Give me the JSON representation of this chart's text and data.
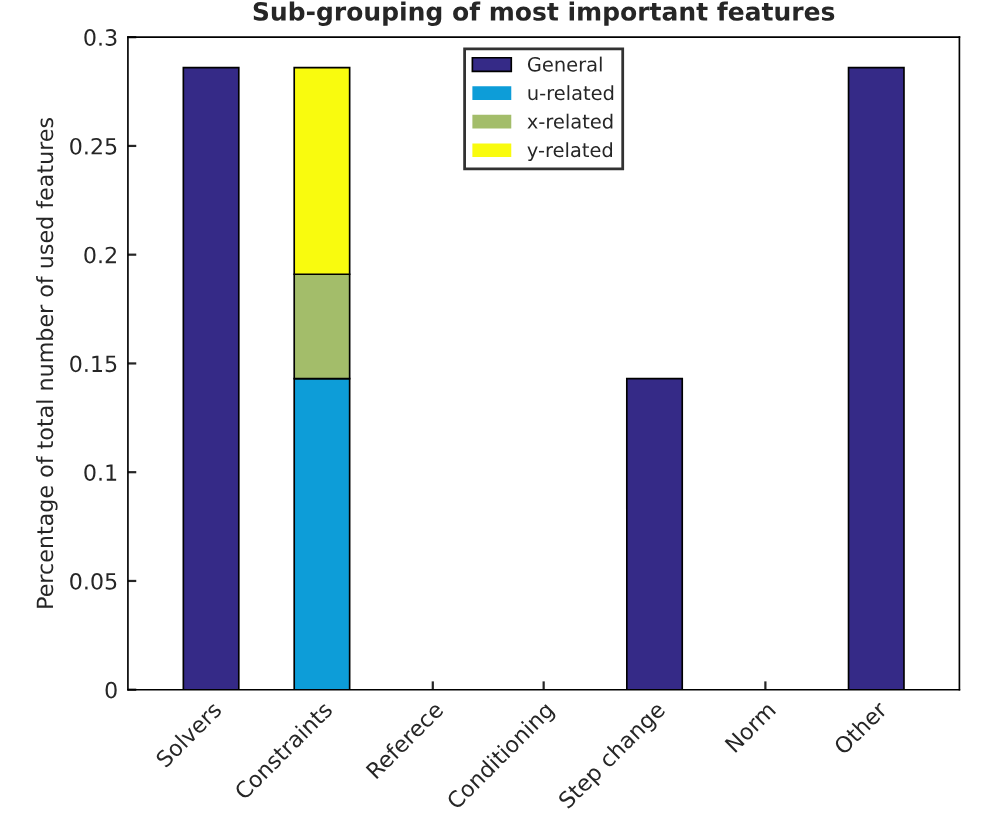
{
  "chart_data": {
    "type": "bar",
    "title": "Sub-grouping of most important features",
    "ylabel": "Percentage of total number of used features",
    "categories": [
      "Solvers",
      "Constraints",
      "Referece",
      "Conditioning",
      "Step change",
      "Norm",
      "Other"
    ],
    "stacked": true,
    "series": [
      {
        "name": "General",
        "color": "#352a87",
        "values": [
          0.286,
          0,
          0,
          0,
          0.143,
          0,
          0.286
        ]
      },
      {
        "name": "u-related",
        "color": "#0d9dd8",
        "values": [
          0,
          0.143,
          0,
          0,
          0,
          0,
          0
        ]
      },
      {
        "name": "x-related",
        "color": "#a3bd6a",
        "values": [
          0,
          0.048,
          0,
          0,
          0,
          0,
          0
        ]
      },
      {
        "name": "y-related",
        "color": "#f9fb0e",
        "values": [
          0,
          0.095,
          0,
          0,
          0,
          0,
          0
        ]
      }
    ],
    "ylim": [
      0,
      0.3
    ],
    "yticks": [
      0,
      0.05,
      0.1,
      0.15,
      0.2,
      0.25,
      0.3
    ],
    "grid": false,
    "legend": "top"
  }
}
